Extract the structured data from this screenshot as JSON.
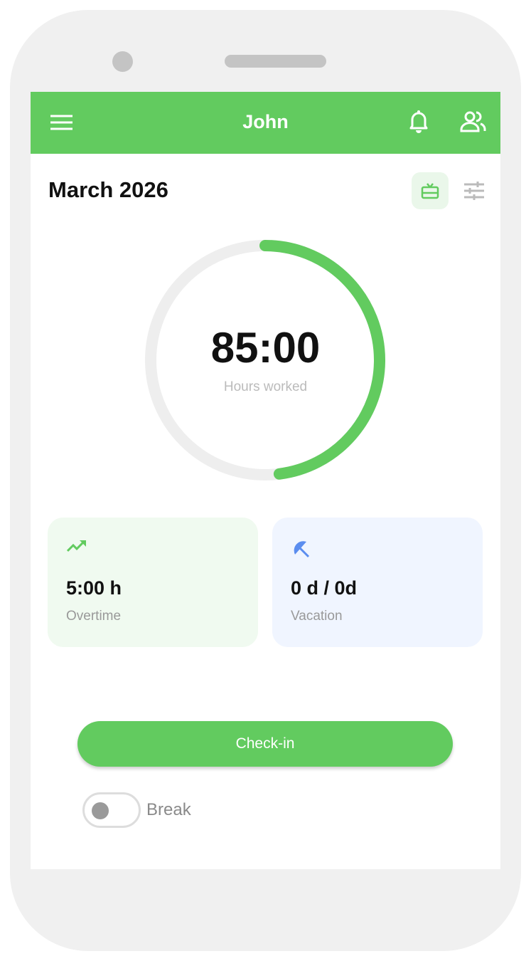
{
  "header": {
    "title": "John",
    "menu_icon": "menu-icon",
    "bell_icon": "bell-icon",
    "users_icon": "users-icon"
  },
  "month": {
    "label": "March 2026"
  },
  "summary": {
    "hours": "85:00",
    "hours_label": "Hours worked",
    "progress": 0.48,
    "progress_color": "#62cb5f"
  },
  "cards": [
    {
      "value": "5:00 h",
      "label": "Overtime",
      "icon": "trending-up-icon",
      "color": "#62cb5f"
    },
    {
      "value": "0 d / 0d",
      "label": "Vacation",
      "icon": "beach-umbrella-icon",
      "color": "#5b8def"
    }
  ],
  "actions": {
    "checkin_label": "Check-in",
    "break_label": "Break",
    "break_on": false
  }
}
